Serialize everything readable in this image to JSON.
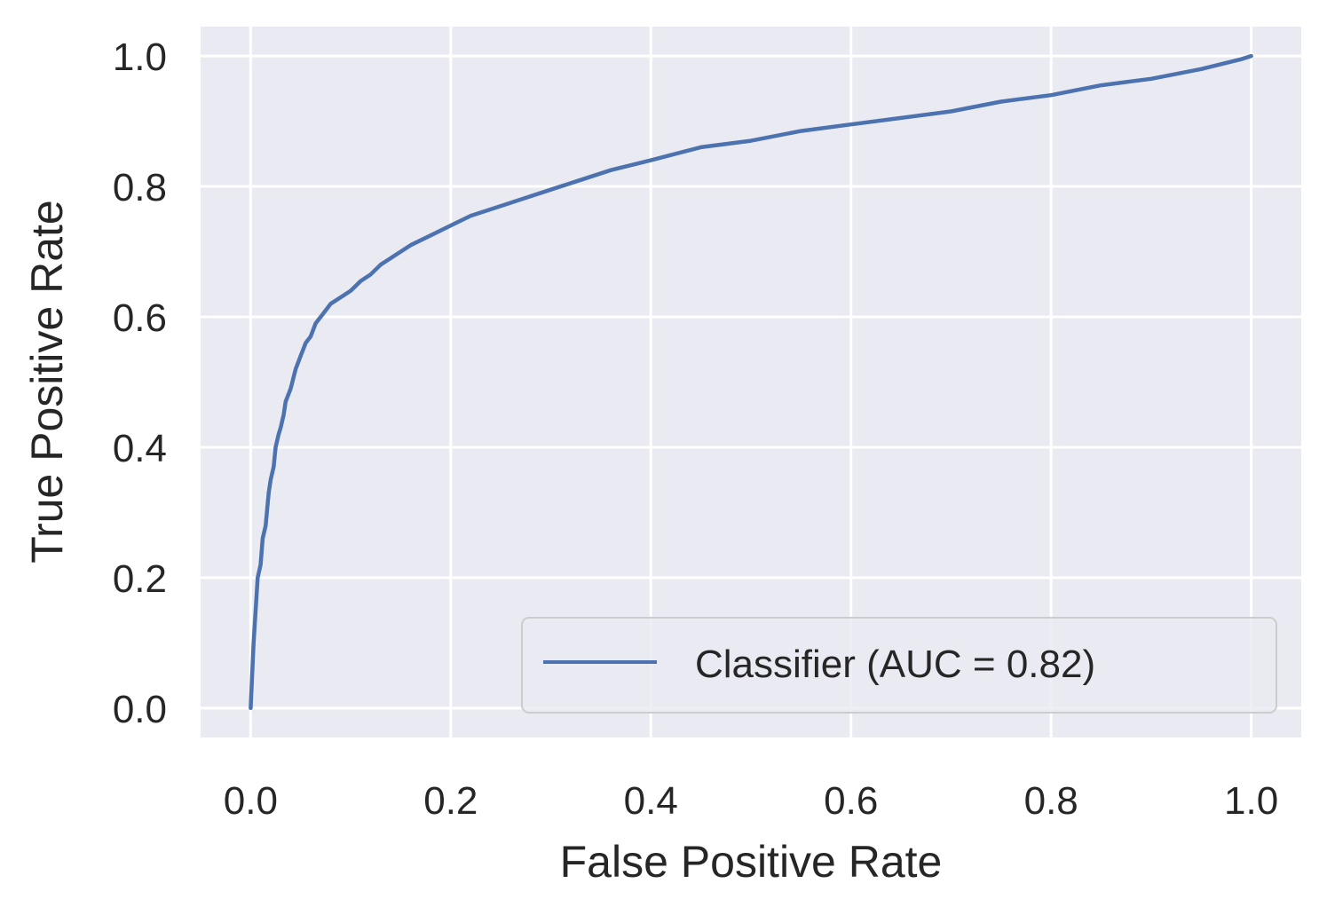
{
  "chart_data": {
    "type": "line",
    "xlabel": "False Positive Rate",
    "ylabel": "True Positive Rate",
    "xlim": [
      -0.05,
      1.05
    ],
    "ylim": [
      -0.045,
      1.045
    ],
    "xticks": [
      "0.0",
      "0.2",
      "0.4",
      "0.6",
      "0.8",
      "1.0"
    ],
    "yticks": [
      "0.0",
      "0.2",
      "0.4",
      "0.6",
      "0.8",
      "1.0"
    ],
    "grid": true,
    "legend_position": "lower-right",
    "series": [
      {
        "name": "Classifier (AUC = 0.82)",
        "color": "#4c72b0",
        "x": [
          0.0,
          0.003,
          0.005,
          0.007,
          0.01,
          0.012,
          0.015,
          0.018,
          0.02,
          0.023,
          0.025,
          0.028,
          0.03,
          0.033,
          0.035,
          0.04,
          0.045,
          0.05,
          0.055,
          0.06,
          0.065,
          0.07,
          0.075,
          0.08,
          0.09,
          0.1,
          0.11,
          0.12,
          0.13,
          0.14,
          0.15,
          0.16,
          0.18,
          0.2,
          0.22,
          0.25,
          0.27,
          0.3,
          0.33,
          0.36,
          0.4,
          0.45,
          0.5,
          0.55,
          0.6,
          0.65,
          0.7,
          0.75,
          0.8,
          0.85,
          0.9,
          0.95,
          0.99,
          1.0
        ],
        "y": [
          0.0,
          0.1,
          0.15,
          0.2,
          0.22,
          0.26,
          0.28,
          0.33,
          0.35,
          0.37,
          0.4,
          0.42,
          0.43,
          0.45,
          0.47,
          0.49,
          0.52,
          0.54,
          0.56,
          0.57,
          0.59,
          0.6,
          0.61,
          0.62,
          0.63,
          0.64,
          0.655,
          0.665,
          0.68,
          0.69,
          0.7,
          0.71,
          0.725,
          0.74,
          0.755,
          0.77,
          0.78,
          0.795,
          0.81,
          0.825,
          0.84,
          0.86,
          0.87,
          0.885,
          0.895,
          0.905,
          0.915,
          0.93,
          0.94,
          0.955,
          0.965,
          0.98,
          0.995,
          1.0
        ]
      }
    ]
  }
}
